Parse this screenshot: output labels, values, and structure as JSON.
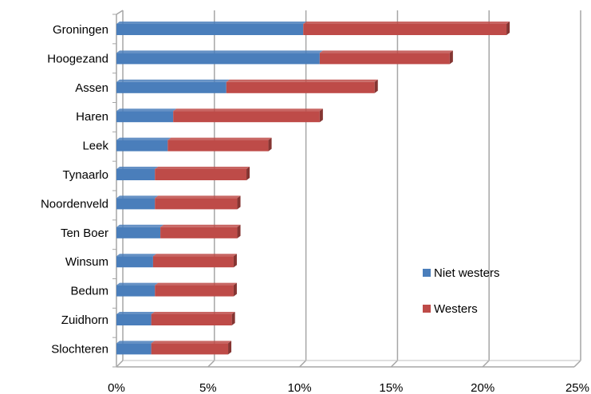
{
  "chart_data": {
    "type": "bar",
    "orientation": "horizontal",
    "stacked": true,
    "style": "3d-clustered-bar",
    "categories": [
      "Groningen",
      "Hoogezand",
      "Assen",
      "Haren",
      "Leek",
      "Tynaarlo",
      "Noordenveld",
      "Ten Boer",
      "Winsum",
      "Bedum",
      "Zuidhorn",
      "Slochteren"
    ],
    "series": [
      {
        "name": "Niet westers",
        "color": "#4a7ebb",
        "values": [
          10.2,
          11.1,
          6.0,
          3.1,
          2.8,
          2.1,
          2.1,
          2.4,
          2.0,
          2.1,
          1.9,
          1.9
        ]
      },
      {
        "name": "Westers",
        "color": "#be4b48",
        "values": [
          11.1,
          7.1,
          8.1,
          8.0,
          5.5,
          5.0,
          4.5,
          4.2,
          4.4,
          4.3,
          4.4,
          4.2
        ]
      }
    ],
    "xlim": [
      0,
      25
    ],
    "xticks": [
      "0%",
      "5%",
      "10%",
      "15%",
      "20%",
      "25%"
    ],
    "grid": "vertical",
    "legend": "right"
  }
}
